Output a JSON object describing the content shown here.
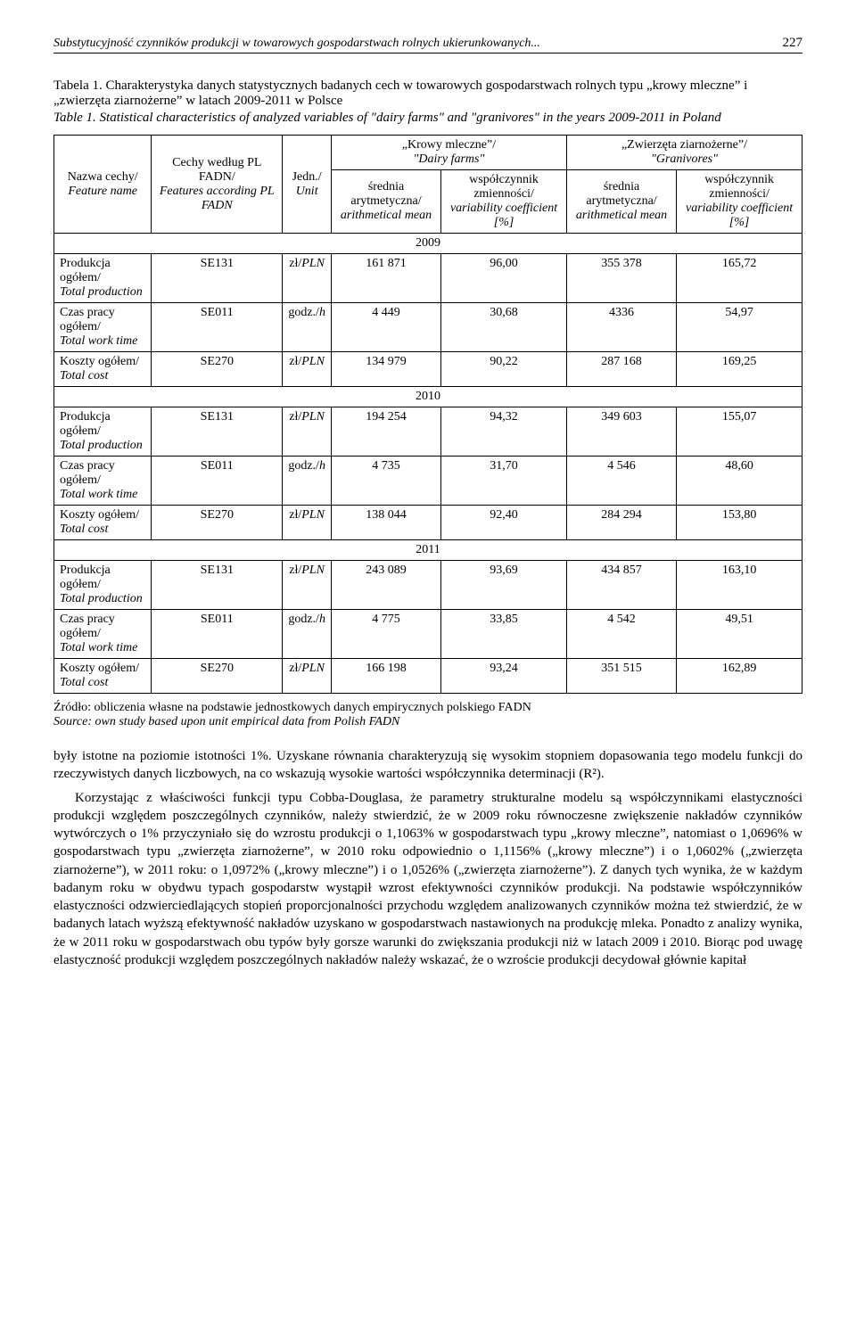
{
  "header": {
    "running_title": "Substytucyjność czynników produkcji w towarowych gospodarstwach rolnych ukierunkowanych...",
    "page_number": "227"
  },
  "table": {
    "number": "Tabela 1.",
    "caption_pl": "Charakterystyka danych statystycznych badanych cech w towarowych gospodarstwach rolnych typu „krowy mleczne” i „zwierzęta ziarnożerne” w latach 2009-2011 w Polsce",
    "table_en": "Table 1.",
    "caption_en": "Statistical characteristics of analyzed variables of \"dairy farms\" and \"granivores\" in the years 2009-2011 in Poland",
    "headers": {
      "feature_pl": "Nazwa cechy/",
      "feature_en": "Feature name",
      "fadn_pl": "Cechy według PL FADN/",
      "fadn_en": "Features according PL FADN",
      "unit_pl": "Jedn./",
      "unit_en": "Unit",
      "dairy_pl": "„Krowy mleczne”/",
      "dairy_en": "\"Dairy farms\"",
      "gran_pl": "„Zwierzęta ziarnożerne”/",
      "gran_en": "\"Granivores\"",
      "mean_pl": "średnia arytmetyczna/",
      "mean_en": "arithmetical mean",
      "cv_pl": "współczynnik zmienności/",
      "cv_en": "variability coefficient [%]"
    },
    "years": [
      "2009",
      "2010",
      "2011"
    ],
    "row_labels": {
      "prod_pl": "Produkcja ogółem/",
      "prod_en": "Total production",
      "work_pl": "Czas pracy ogółem/",
      "work_en": "Total work time",
      "cost_pl": "Koszty ogółem/",
      "cost_en": "Total cost"
    },
    "codes": {
      "prod": "SE131",
      "work": "SE011",
      "cost": "SE270"
    },
    "units": {
      "pln": "zł/PLN",
      "hour": "godz./h"
    },
    "data": {
      "2009": {
        "prod": {
          "d_mean": "161 871",
          "d_cv": "96,00",
          "g_mean": "355 378",
          "g_cv": "165,72"
        },
        "work": {
          "d_mean": "4 449",
          "d_cv": "30,68",
          "g_mean": "4336",
          "g_cv": "54,97"
        },
        "cost": {
          "d_mean": "134 979",
          "d_cv": "90,22",
          "g_mean": "287 168",
          "g_cv": "169,25"
        }
      },
      "2010": {
        "prod": {
          "d_mean": "194 254",
          "d_cv": "94,32",
          "g_mean": "349 603",
          "g_cv": "155,07"
        },
        "work": {
          "d_mean": "4 735",
          "d_cv": "31,70",
          "g_mean": "4 546",
          "g_cv": "48,60"
        },
        "cost": {
          "d_mean": "138 044",
          "d_cv": "92,40",
          "g_mean": "284 294",
          "g_cv": "153,80"
        }
      },
      "2011": {
        "prod": {
          "d_mean": "243 089",
          "d_cv": "93,69",
          "g_mean": "434 857",
          "g_cv": "163,10"
        },
        "work": {
          "d_mean": "4 775",
          "d_cv": "33,85",
          "g_mean": "4 542",
          "g_cv": "49,51"
        },
        "cost": {
          "d_mean": "166 198",
          "d_cv": "93,24",
          "g_mean": "351 515",
          "g_cv": "162,89"
        }
      }
    }
  },
  "source": {
    "pl": "Źródło: obliczenia własne na podstawie jednostkowych danych empirycznych polskiego FADN",
    "en": "Source: own study based upon unit empirical data from Polish FADN"
  },
  "paragraphs": {
    "p1": "były istotne na poziomie istotności 1%. Uzyskane równania charakteryzują się wysokim stopniem dopasowania tego modelu funkcji do rzeczywistych danych liczbowych, na co wskazują wysokie wartości współczynnika determinacji (R²).",
    "p2": "Korzystając z właściwości funkcji typu Cobba-Douglasa, że parametry strukturalne modelu są współczynnikami elastyczności produkcji względem poszczególnych czynników, należy stwierdzić, że w 2009 roku równoczesne zwiększenie nakładów czynników wytwórczych o 1% przyczyniało się do wzrostu produkcji o 1,1063% w gospodarstwach typu „krowy mleczne”, natomiast o 1,0696% w gospodarstwach typu „zwierzęta ziarnożerne”, w 2010 roku odpowiednio o 1,1156% („krowy mleczne”) i o 1,0602% („zwierzęta ziarnożerne”), w 2011 roku: o 1,0972% („krowy mleczne”) i o 1,0526% („zwierzęta ziarnożerne”). Z danych tych wynika, że w każdym badanym roku w obydwu typach gospodarstw wystąpił wzrost efektywności czynników produkcji. Na podstawie współczynników elastyczności odzwierciedlających stopień proporcjonalności przychodu względem analizowanych czynników można też stwierdzić, że w badanych latach wyższą efektywność nakładów uzyskano w gospodarstwach nastawionych na produkcję mleka. Ponadto z analizy wynika, że w 2011 roku w gospodarstwach obu typów były gorsze warunki do zwiększania produkcji niż w latach 2009 i 2010. Biorąc pod uwagę elastyczność produkcji względem poszczególnych nakładów należy wskazać, że o wzroście produkcji decydował głównie kapitał"
  }
}
